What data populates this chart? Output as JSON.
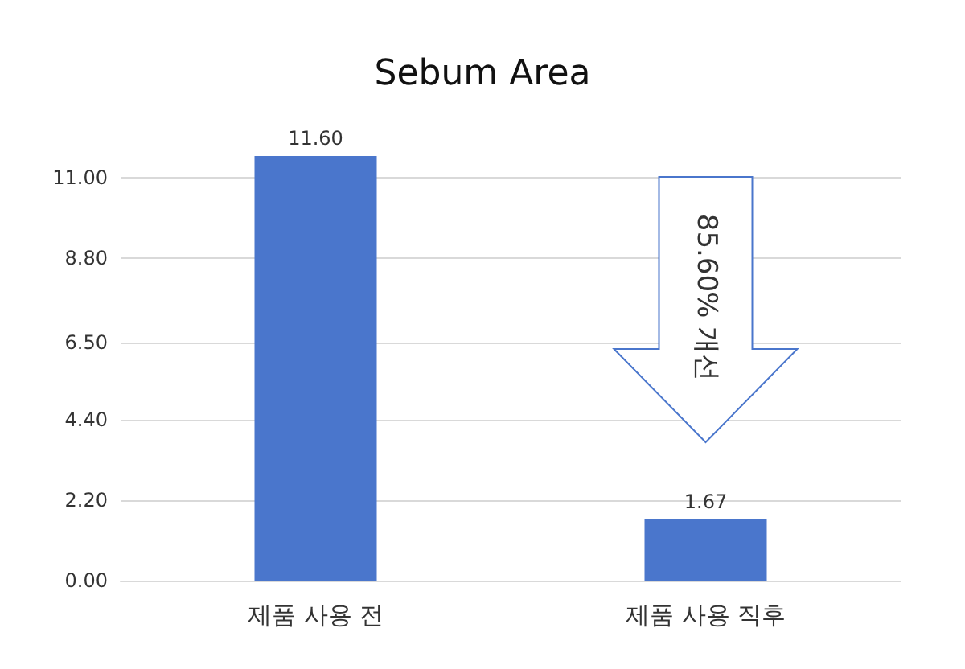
{
  "chart_data": {
    "type": "bar",
    "title": "Sebum Area",
    "categories": [
      "제품 사용 전",
      "제품 사용 직후"
    ],
    "values": [
      11.6,
      1.67
    ],
    "color": "#4a76cc",
    "ylim": [
      0,
      11.6
    ],
    "yticks": [
      {
        "value": 0,
        "label": "0.00"
      },
      {
        "value": 2.2,
        "label": "2.20"
      },
      {
        "value": 4.4,
        "label": "4.40"
      },
      {
        "value": 6.5,
        "label": "6.50"
      },
      {
        "value": 8.8,
        "label": "8.80"
      },
      {
        "value": 11,
        "label": "11.00"
      }
    ],
    "value_labels": [
      "11.60",
      "1.67"
    ],
    "grid": "y",
    "annotations": [
      "85.60% 개선"
    ]
  }
}
